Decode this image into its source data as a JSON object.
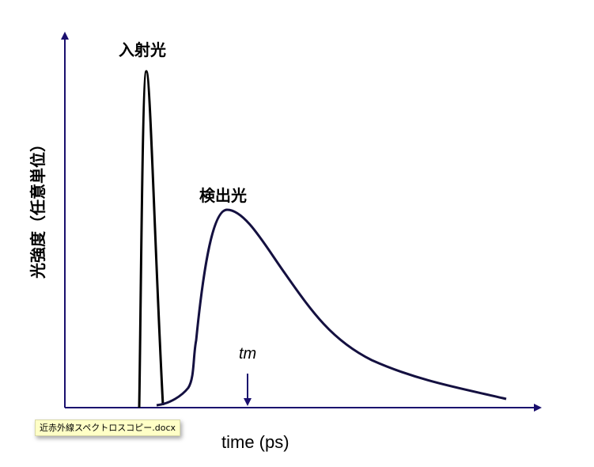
{
  "labels": {
    "incident_light": "入射光",
    "detected_light": "検出光",
    "y_axis": "光強度（任意単位）",
    "x_axis": "time (ps)",
    "tm": "tm"
  },
  "tooltip": {
    "text": "近赤外線スペクトロスコピー.docx"
  },
  "colors": {
    "axis": "#1a0f6e",
    "incident_curve": "#000000",
    "detected_curve": "#141040"
  }
}
